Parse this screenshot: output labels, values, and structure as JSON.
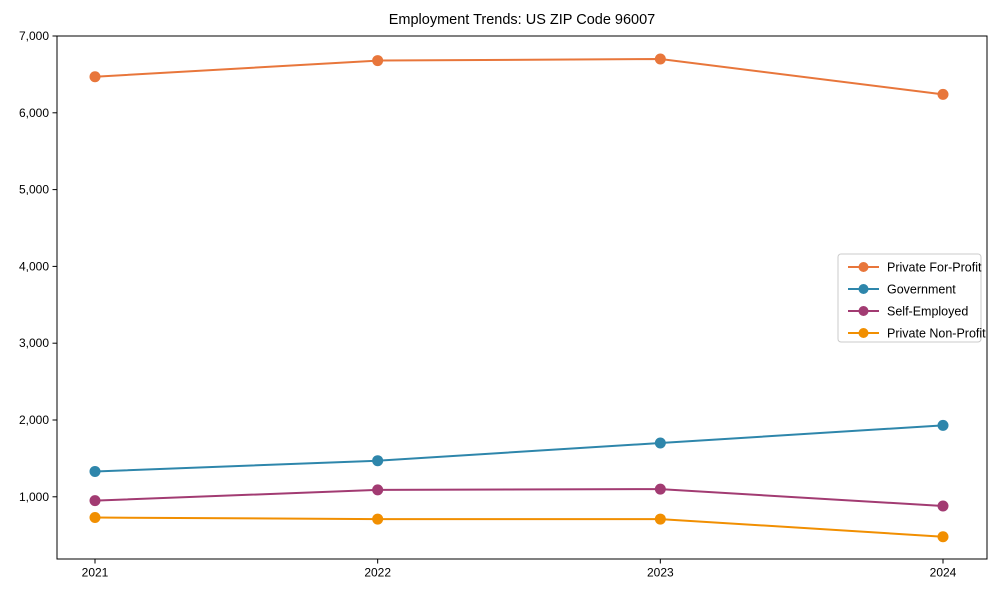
{
  "figure": {
    "background": "#ffffff",
    "axis_color": "#000000"
  },
  "chart_data": {
    "type": "line",
    "title": "Employment Trends: US ZIP Code 96007",
    "x_categories": [
      "2021",
      "2022",
      "2023",
      "2024"
    ],
    "series": [
      {
        "name": "Private For-Profit",
        "color": "#E8763B",
        "values": [
          6470,
          6680,
          6700,
          6240
        ]
      },
      {
        "name": "Government",
        "color": "#2E86AB",
        "values": [
          1330,
          1470,
          1700,
          1930
        ]
      },
      {
        "name": "Self-Employed",
        "color": "#A23B72",
        "values": [
          950,
          1090,
          1100,
          880
        ]
      },
      {
        "name": "Private Non-Profit",
        "color": "#F18F01",
        "values": [
          730,
          710,
          710,
          480
        ]
      }
    ],
    "ylim": [
      190,
      7000
    ],
    "yticks": [
      1000,
      2000,
      3000,
      4000,
      5000,
      6000,
      7000
    ],
    "ytick_labels": [
      "1,000",
      "2,000",
      "3,000",
      "4,000",
      "5,000",
      "6,000",
      "7,000"
    ],
    "xlabel": "",
    "ylabel": "",
    "grid": false,
    "legend_position": "center-right",
    "line_width": 2,
    "marker": "circle"
  }
}
